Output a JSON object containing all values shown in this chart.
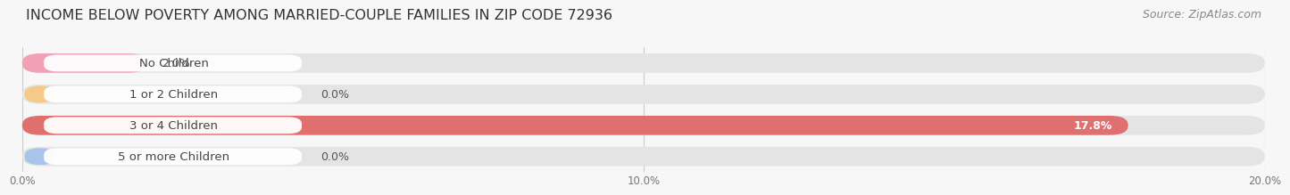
{
  "title": "INCOME BELOW POVERTY AMONG MARRIED-COUPLE FAMILIES IN ZIP CODE 72936",
  "source": "Source: ZipAtlas.com",
  "categories": [
    "No Children",
    "1 or 2 Children",
    "3 or 4 Children",
    "5 or more Children"
  ],
  "values": [
    2.0,
    0.0,
    17.8,
    0.0
  ],
  "bar_colors": [
    "#f2a0b4",
    "#f5c98a",
    "#e07070",
    "#a8c4e8"
  ],
  "xlim": [
    0,
    20.0
  ],
  "xticks": [
    0.0,
    10.0,
    20.0
  ],
  "xtick_labels": [
    "0.0%",
    "10.0%",
    "20.0%"
  ],
  "bg_color": "#f7f7f7",
  "bar_bg_color": "#e4e4e4",
  "title_fontsize": 11.5,
  "source_fontsize": 9,
  "label_fontsize": 9.5,
  "value_fontsize": 9
}
